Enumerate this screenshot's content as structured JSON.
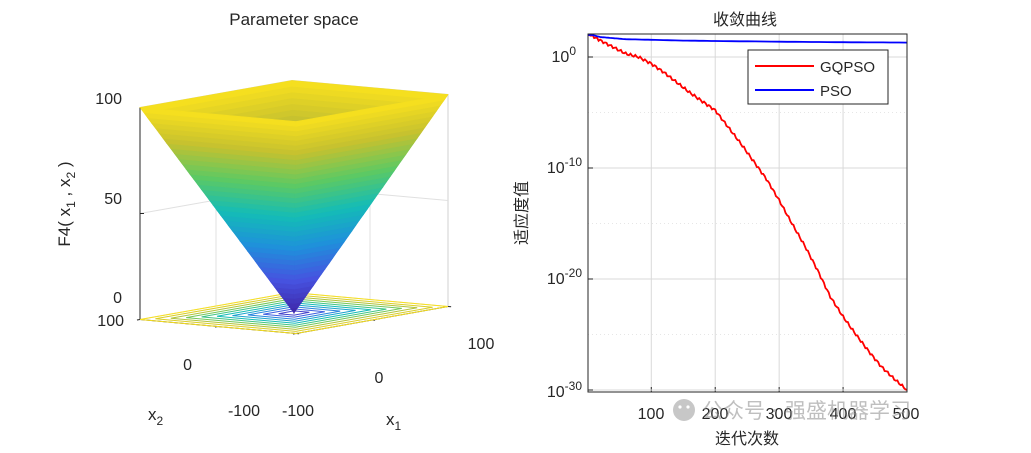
{
  "chart_data": [
    {
      "type": "surface3d",
      "title": "Parameter space",
      "function_label": "F4",
      "zlabel_parts": [
        "F4( x",
        "1",
        " , x",
        "2",
        " )"
      ],
      "xlabel": "x",
      "xlabel_sub": "1",
      "ylabel": "x",
      "ylabel_sub": "2",
      "x_ticks": [
        "-100",
        "0",
        "100"
      ],
      "y_ticks": [
        "100",
        "0",
        "-100"
      ],
      "z_ticks": [
        "0",
        "50",
        "100"
      ],
      "xlim": [
        -100,
        100
      ],
      "ylim": [
        -100,
        100
      ],
      "zlim": [
        0,
        100
      ],
      "surface": "max(|x1|, |x2|)",
      "contour_levels": [
        10,
        20,
        30,
        40,
        50,
        60,
        70,
        80,
        90,
        100
      ],
      "colormap": [
        "#3e26a8",
        "#4653e0",
        "#1f90db",
        "#14bcb6",
        "#5ec962",
        "#c6c12f",
        "#f9e11e"
      ]
    },
    {
      "type": "line",
      "yscale": "log",
      "title": "收敛曲线",
      "xlabel": "迭代次数",
      "ylabel": "适应度值",
      "xlim": [
        1,
        500
      ],
      "ylim_exp": [
        -30,
        3
      ],
      "x_ticks": [
        "100",
        "200",
        "300",
        "400",
        "500"
      ],
      "y_ticks": [
        {
          "base": "10",
          "exp": "0"
        },
        {
          "base": "10",
          "exp": "-10"
        },
        {
          "base": "10",
          "exp": "-20"
        },
        {
          "base": "10",
          "exp": "-30"
        }
      ],
      "legend_position": "top-right",
      "series": [
        {
          "name": "GQPSO",
          "color": "#ff0000",
          "x": [
            1,
            20,
            40,
            60,
            80,
            100,
            120,
            140,
            160,
            180,
            200,
            220,
            240,
            260,
            280,
            300,
            320,
            340,
            360,
            380,
            400,
            420,
            440,
            460,
            480,
            500
          ],
          "log10_y": [
            2.1,
            1.5,
            0.9,
            0.3,
            0.0,
            -0.6,
            -1.4,
            -2.3,
            -3.2,
            -4.0,
            -4.8,
            -6.3,
            -7.8,
            -9.4,
            -11.0,
            -12.9,
            -15.0,
            -17.0,
            -19.2,
            -21.6,
            -23.4,
            -25.0,
            -26.5,
            -27.9,
            -29.0,
            -30.0
          ]
        },
        {
          "name": "PSO",
          "color": "#0000ff",
          "x": [
            1,
            10,
            20,
            40,
            60,
            100,
            150,
            200,
            300,
            400,
            500
          ],
          "log10_y": [
            2.1,
            1.95,
            1.8,
            1.7,
            1.6,
            1.55,
            1.48,
            1.44,
            1.38,
            1.33,
            1.3
          ]
        }
      ]
    }
  ],
  "watermark": "公众号 · 强盛机器学习"
}
